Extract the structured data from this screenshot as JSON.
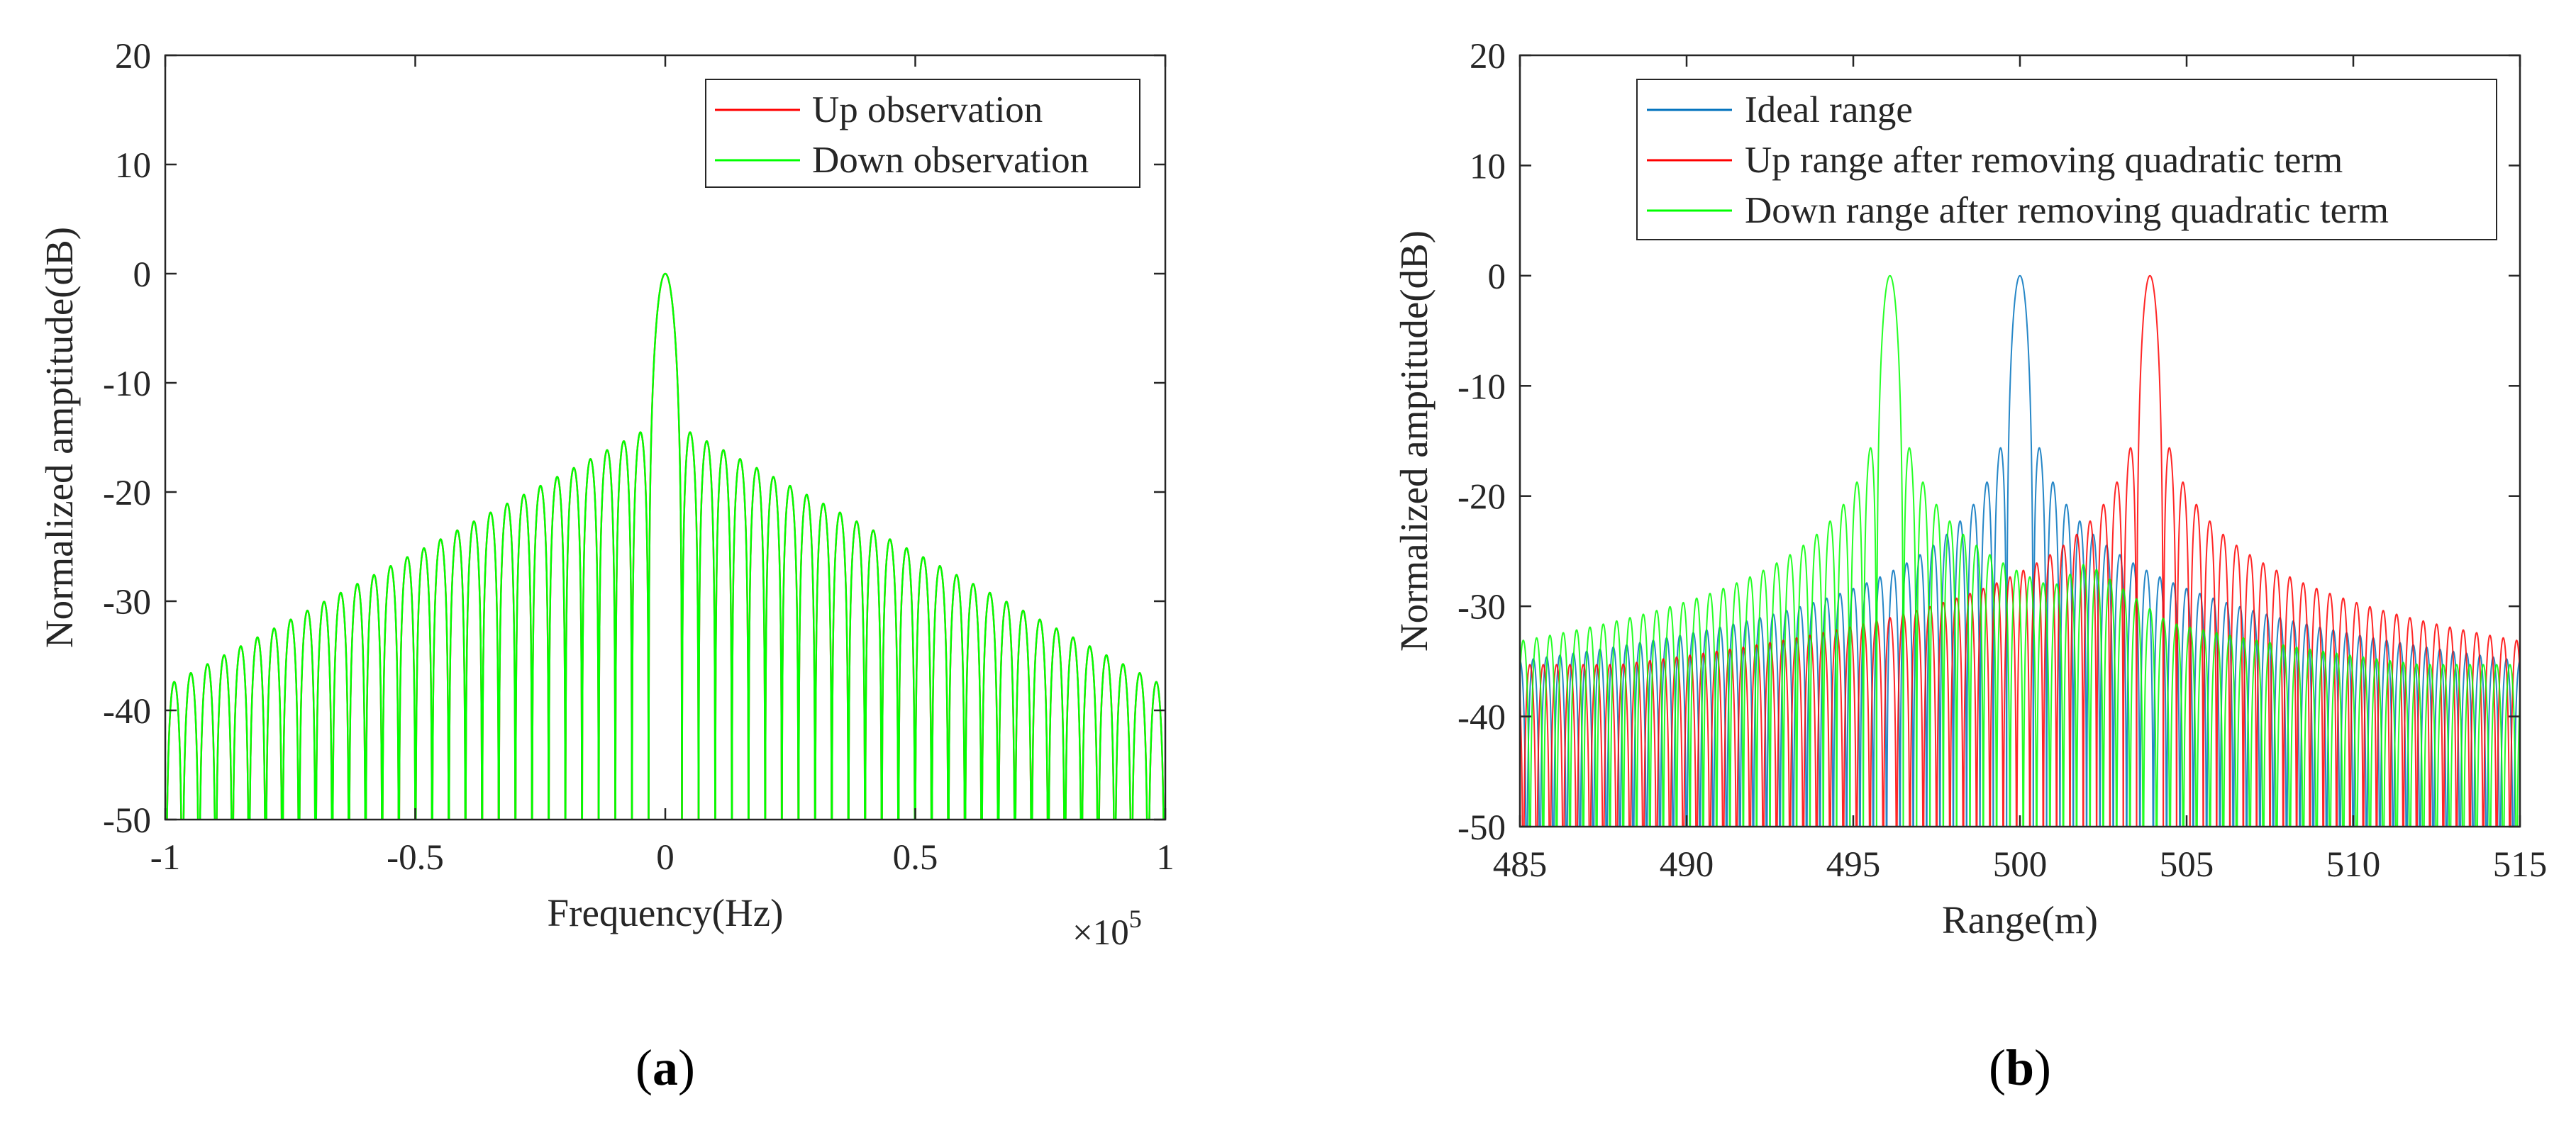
{
  "chart_data": [
    {
      "type": "line",
      "panel_label": "a",
      "title": "",
      "xlabel": "Frequency(Hz)",
      "ylabel": "Normalized amptitude(dB)",
      "x_exponent_label": "×10",
      "x_exponent": "5",
      "xlim": [
        -1,
        1
      ],
      "ylim": [
        -50,
        20
      ],
      "xticks": [
        -1,
        -0.5,
        0,
        0.5,
        1
      ],
      "xtick_labels": [
        "-1",
        "-0.5",
        "0",
        "0.5",
        "1"
      ],
      "yticks": [
        20,
        10,
        0,
        -10,
        -20,
        -30,
        -40,
        -50
      ],
      "ytick_labels": [
        "20",
        "10",
        "0",
        "-10",
        "-20",
        "-30",
        "-40",
        "-50"
      ],
      "grid": false,
      "legend_position": "top-right",
      "series": [
        {
          "name": "Up observation",
          "color": "#ff0000",
          "center": 0,
          "null_spacing": 0.0333,
          "floor": -50,
          "sidelobe_decay_db": 20
        },
        {
          "name": "Down observation",
          "color": "#00ff00",
          "center": 0,
          "null_spacing": 0.0333,
          "floor": -50,
          "sidelobe_decay_db": 20
        }
      ]
    },
    {
      "type": "line",
      "panel_label": "b",
      "title": "",
      "xlabel": "Range(m)",
      "ylabel": "Normalized amptitude(dB)",
      "xlim": [
        485,
        515
      ],
      "ylim": [
        -50,
        20
      ],
      "xticks": [
        485,
        490,
        495,
        500,
        505,
        510,
        515
      ],
      "xtick_labels": [
        "485",
        "490",
        "495",
        "500",
        "505",
        "510",
        "515"
      ],
      "yticks": [
        20,
        10,
        0,
        -10,
        -20,
        -30,
        -40,
        -50
      ],
      "ytick_labels": [
        "20",
        "10",
        "0",
        "-10",
        "-20",
        "-30",
        "-40",
        "-50"
      ],
      "grid": false,
      "legend_position": "top-right",
      "series": [
        {
          "name": "Ideal range",
          "color": "#0072bd",
          "center": 500.0,
          "null_spacing": 0.4,
          "floor": -50,
          "sidelobe_decay_db": 20,
          "inner_lobes": 4,
          "secondary_peak": 497.9,
          "secondary_level": -26
        },
        {
          "name": "Up range after removing quadratic term",
          "color": "#ff0000",
          "center": 503.9,
          "null_spacing": 0.4,
          "floor": -50,
          "sidelobe_decay_db": 20,
          "inner_lobes": 2,
          "secondary_peak": 500.0,
          "secondary_level": -32
        },
        {
          "name": "Down range after removing quadratic term",
          "color": "#00ff00",
          "center": 496.1,
          "null_spacing": 0.4,
          "floor": -50,
          "sidelobe_decay_db": 20,
          "inner_lobes": 2,
          "secondary_peak": 502.0,
          "secondary_level": -26
        }
      ]
    }
  ]
}
